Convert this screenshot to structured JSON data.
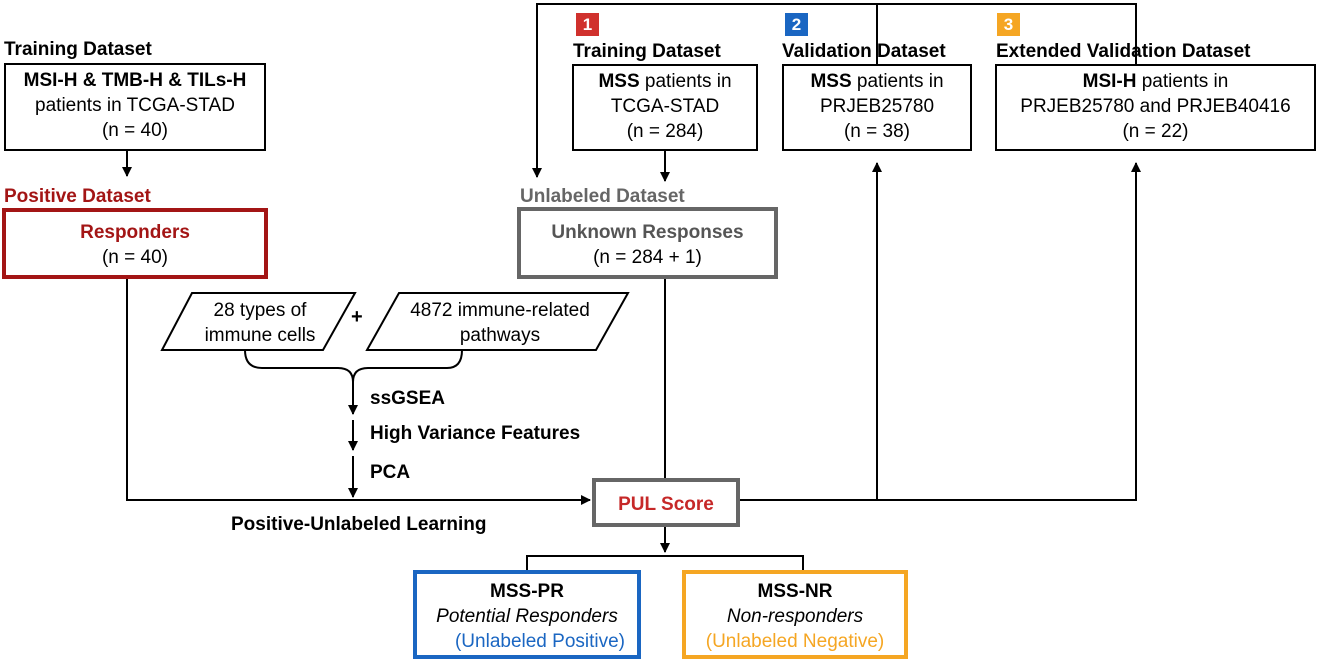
{
  "left": {
    "training_label": "Training Dataset",
    "training_box": {
      "line1": "MSI-H & TMB-H & TILs-H",
      "line2": "patients in TCGA-STAD",
      "line3": "(n = 40)"
    },
    "positive_label": "Positive Dataset",
    "responders_box": {
      "title": "Responders",
      "count": "(n = 40)"
    }
  },
  "datasets": [
    {
      "number": "1",
      "color": "#d0312d",
      "label": "Training Dataset",
      "bold": "MSS",
      "rest": " patients in",
      "line2": "TCGA-STAD",
      "line3": "(n = 284)"
    },
    {
      "number": "2",
      "color": "#1a66c2",
      "label": "Validation Dataset",
      "bold": "MSS",
      "rest": " patients in",
      "line2": "PRJEB25780",
      "line3": "(n = 38)"
    },
    {
      "number": "3",
      "color": "#f5a623",
      "label": "Extended Validation Dataset",
      "bold": "MSI-H",
      "rest": " patients in",
      "line2": "PRJEB25780 and PRJEB40416",
      "line3": "(n = 22)"
    }
  ],
  "unlabeled": {
    "label": "Unlabeled Dataset",
    "title": "Unknown Responses",
    "count": "(n = 284 + 1)"
  },
  "features": {
    "immune_cells": {
      "line1": "28 types of",
      "line2": "immune cells"
    },
    "plus": "+",
    "pathways": {
      "line1": "4872 immune-related",
      "line2": "pathways"
    },
    "steps": [
      "ssGSEA",
      "High Variance Features",
      "PCA"
    ]
  },
  "pul": {
    "score": "PUL Score",
    "learning_label": "Positive-Unlabeled Learning"
  },
  "outcomes": {
    "pr": {
      "title": "MSS-PR",
      "subtitle": "Potential Responders",
      "note": "(Unlabeled Positive)"
    },
    "nr": {
      "title": "MSS-NR",
      "subtitle": "Non-responders",
      "note": "(Unlabeled Negative)"
    }
  },
  "colors": {
    "dark_red": "#a31515",
    "gray": "#666666",
    "pul_red": "#c62828",
    "blue": "#1a66c2",
    "orange": "#f5a623"
  }
}
